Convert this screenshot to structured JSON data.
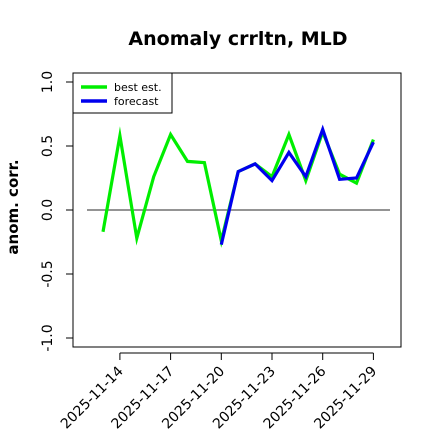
{
  "chart_data": {
    "type": "line",
    "title": "Anomaly crrltn, MLD",
    "xlabel": "",
    "ylabel": "anom. corr.",
    "ylim": [
      -1.0,
      1.0
    ],
    "yticks": [
      "-1.0",
      "-0.5",
      "0.0",
      "0.5",
      "1.0"
    ],
    "x": [
      "2025-11-13",
      "2025-11-14",
      "2025-11-15",
      "2025-11-16",
      "2025-11-17",
      "2025-11-18",
      "2025-11-19",
      "2025-11-20",
      "2025-11-21",
      "2025-11-22",
      "2025-11-23",
      "2025-11-24",
      "2025-11-25",
      "2025-11-26",
      "2025-11-27",
      "2025-11-28",
      "2025-11-29"
    ],
    "xtick_labels": [
      "2025-11-14",
      "2025-11-17",
      "2025-11-20",
      "2025-11-23",
      "2025-11-26",
      "2025-11-29"
    ],
    "highlight_tick": "2025-11-20",
    "highlight_color": "#228B22",
    "reference_line": 0.0,
    "legend": {
      "placement": "top-left"
    },
    "series": [
      {
        "name": "best est.",
        "color": "#00ee00",
        "values": [
          -0.17,
          0.58,
          -0.22,
          0.26,
          0.59,
          0.38,
          0.37,
          -0.24,
          0.3,
          0.36,
          0.26,
          0.59,
          0.23,
          0.61,
          0.28,
          0.21,
          0.55
        ]
      },
      {
        "name": "forecast",
        "color": "#0000ee",
        "values": [
          null,
          null,
          null,
          null,
          null,
          null,
          null,
          -0.27,
          0.3,
          0.36,
          0.23,
          0.45,
          0.26,
          0.63,
          0.24,
          0.25,
          0.53
        ]
      }
    ]
  }
}
